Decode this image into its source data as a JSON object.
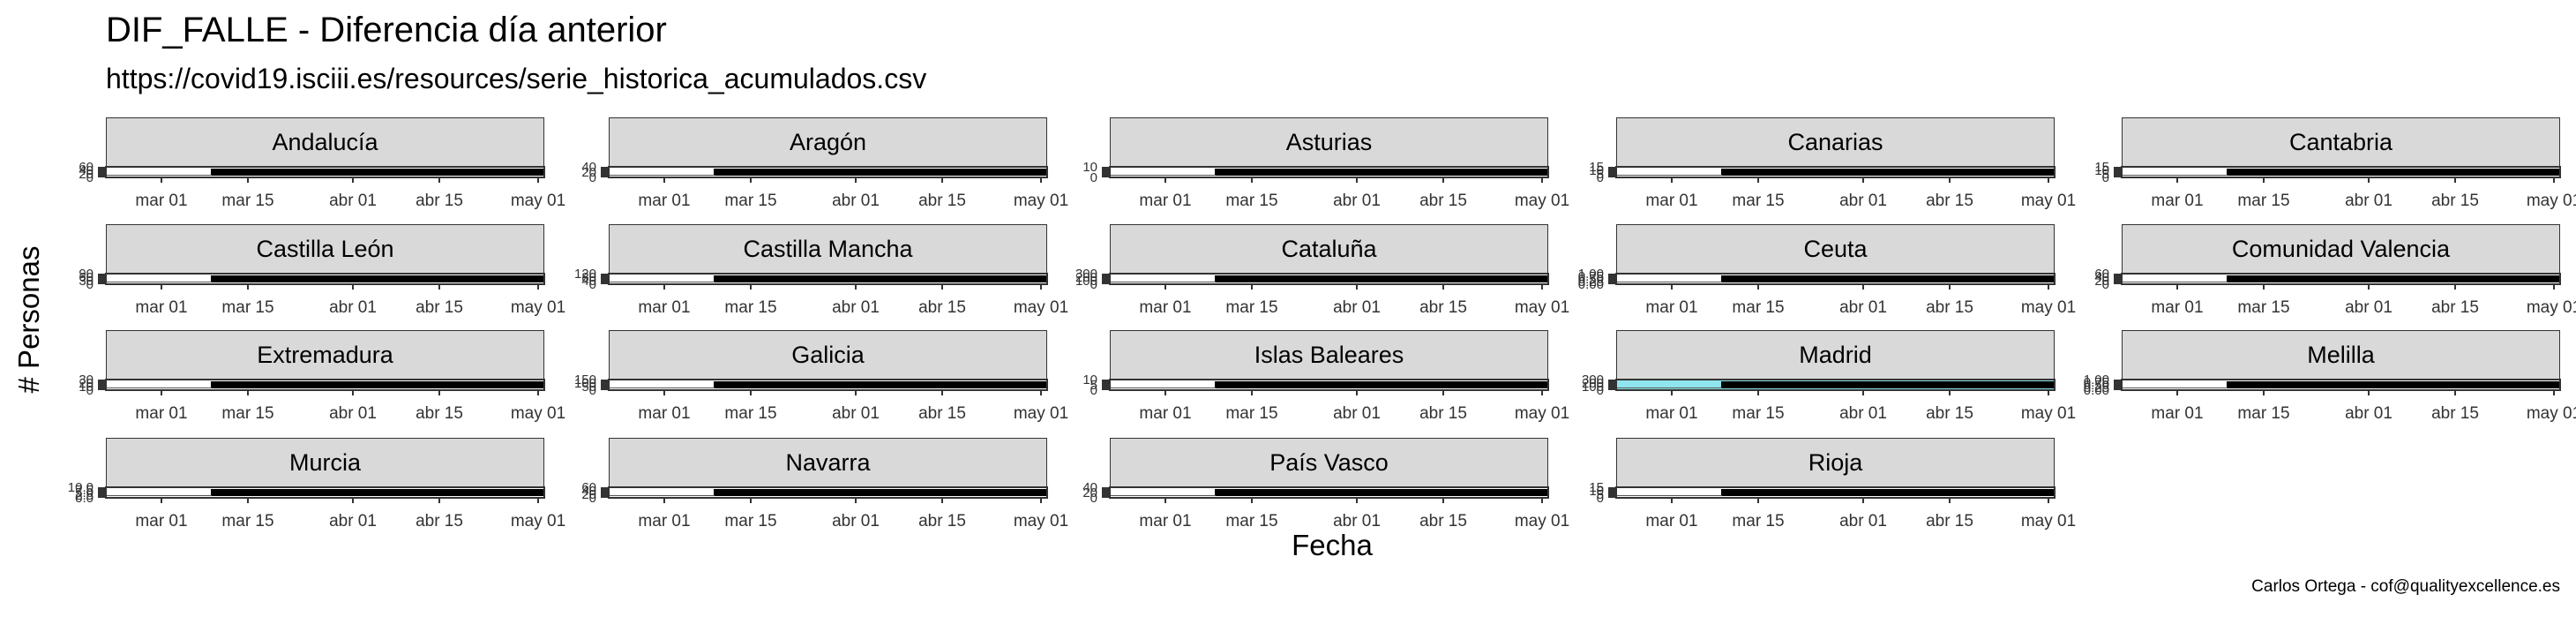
{
  "chart_data": {
    "type": "line",
    "title": "DIF_FALLE - Diferencia día anterior",
    "subtitle": "https://covid19.isciii.es/resources/serie_historica_acumulados.csv",
    "xlabel": "Fecha",
    "ylabel": "# Personas",
    "caption": "Carlos Ortega - cof@qualityexcellence.es",
    "x_tick_labels": [
      "mar 01",
      "mar 15",
      "abr 01",
      "abr 15",
      "may 01"
    ],
    "x_tick_dates": [
      "2020-03-01",
      "2020-03-15",
      "2020-04-01",
      "2020-04-15",
      "2020-05-01"
    ],
    "xlim": [
      "2020-02-21",
      "2020-05-02"
    ],
    "data_start": "2020-03-09",
    "facets": [
      {
        "name": "Andalucía",
        "y_tick_labels": [
          "0",
          "20",
          "40",
          "60"
        ],
        "ylim": [
          0,
          60
        ],
        "has_fill": false
      },
      {
        "name": "Aragón",
        "y_tick_labels": [
          "0",
          "20",
          "40"
        ],
        "ylim": [
          0,
          40
        ],
        "has_fill": false
      },
      {
        "name": "Asturias",
        "y_tick_labels": [
          "0",
          "10"
        ],
        "ylim": [
          0,
          10
        ],
        "has_fill": false
      },
      {
        "name": "Canarias",
        "y_tick_labels": [
          "0",
          "5",
          "10",
          "15"
        ],
        "ylim": [
          0,
          15
        ],
        "has_fill": false
      },
      {
        "name": "Cantabria",
        "y_tick_labels": [
          "0",
          "5",
          "10",
          "15"
        ],
        "ylim": [
          0,
          15
        ],
        "has_fill": false
      },
      {
        "name": "Castilla León",
        "y_tick_labels": [
          "0",
          "30",
          "60",
          "90"
        ],
        "ylim": [
          0,
          90
        ],
        "has_fill": false
      },
      {
        "name": "Castilla Mancha",
        "y_tick_labels": [
          "0",
          "40",
          "80",
          "120"
        ],
        "ylim": [
          0,
          120
        ],
        "has_fill": false
      },
      {
        "name": "Cataluña",
        "y_tick_labels": [
          "0",
          "100",
          "200",
          "300"
        ],
        "ylim": [
          0,
          300
        ],
        "has_fill": false
      },
      {
        "name": "Ceuta",
        "y_tick_labels": [
          "0.00",
          "0.25",
          "0.50",
          "0.75",
          "1.00"
        ],
        "ylim": [
          0,
          1
        ],
        "has_fill": false
      },
      {
        "name": "Comunidad Valencia",
        "y_tick_labels": [
          "0",
          "20",
          "40",
          "60"
        ],
        "ylim": [
          0,
          60
        ],
        "has_fill": false
      },
      {
        "name": "Extremadura",
        "y_tick_labels": [
          "0",
          "10",
          "20",
          "30"
        ],
        "ylim": [
          0,
          30
        ],
        "has_fill": false
      },
      {
        "name": "Galicia",
        "y_tick_labels": [
          "0",
          "50",
          "100",
          "150"
        ],
        "ylim": [
          0,
          150
        ],
        "has_fill": false
      },
      {
        "name": "Islas Baleares",
        "y_tick_labels": [
          "0",
          "5",
          "10"
        ],
        "ylim": [
          0,
          10
        ],
        "has_fill": false
      },
      {
        "name": "Madrid",
        "y_tick_labels": [
          "0",
          "100",
          "200",
          "300"
        ],
        "ylim": [
          0,
          300
        ],
        "has_fill": true
      },
      {
        "name": "Melilla",
        "y_tick_labels": [
          "0.00",
          "0.25",
          "0.50",
          "0.75",
          "1.00"
        ],
        "ylim": [
          0,
          1
        ],
        "has_fill": false
      },
      {
        "name": "Murcia",
        "y_tick_labels": [
          "0.0",
          "2.5",
          "5.0",
          "7.5",
          "10.0"
        ],
        "ylim": [
          0,
          10
        ],
        "has_fill": false
      },
      {
        "name": "Navarra",
        "y_tick_labels": [
          "0",
          "20",
          "40",
          "60"
        ],
        "ylim": [
          0,
          60
        ],
        "has_fill": false
      },
      {
        "name": "País Vasco",
        "y_tick_labels": [
          "0",
          "20",
          "40"
        ],
        "ylim": [
          0,
          40
        ],
        "has_fill": false
      },
      {
        "name": "Rioja",
        "y_tick_labels": [
          "0",
          "5",
          "10",
          "15"
        ],
        "ylim": [
          0,
          15
        ],
        "has_fill": false
      }
    ],
    "colors": {
      "strip_fill": "#d9d9d9",
      "panel_border": "#333333",
      "line": "#000000",
      "fill_madrid": "#8ee5ee"
    },
    "grid": false,
    "legend": "none"
  }
}
